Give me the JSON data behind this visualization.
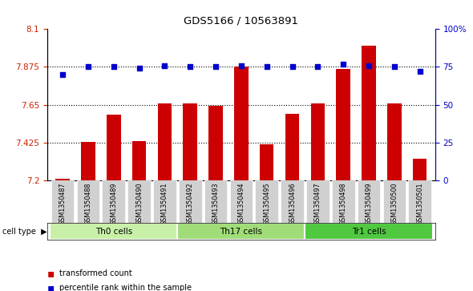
{
  "title": "GDS5166 / 10563891",
  "samples": [
    "GSM1350487",
    "GSM1350488",
    "GSM1350489",
    "GSM1350490",
    "GSM1350491",
    "GSM1350492",
    "GSM1350493",
    "GSM1350494",
    "GSM1350495",
    "GSM1350496",
    "GSM1350497",
    "GSM1350498",
    "GSM1350499",
    "GSM1350500",
    "GSM1350501"
  ],
  "transformed_counts": [
    7.21,
    7.43,
    7.59,
    7.435,
    7.66,
    7.66,
    7.645,
    7.875,
    7.415,
    7.595,
    7.66,
    7.865,
    8.0,
    7.66,
    7.33
  ],
  "percentile_ranks": [
    70,
    75,
    75,
    74,
    76,
    75,
    75,
    76,
    75,
    75,
    75,
    77,
    76,
    75,
    72
  ],
  "cell_groups": [
    {
      "label": "Th0 cells",
      "start": 0,
      "end": 4,
      "color": "#c8f0a8"
    },
    {
      "label": "Th17 cells",
      "start": 5,
      "end": 9,
      "color": "#a0dc78"
    },
    {
      "label": "Tr1 cells",
      "start": 10,
      "end": 14,
      "color": "#50c840"
    }
  ],
  "bar_color": "#cc0000",
  "dot_color": "#0000cc",
  "ylim_left": [
    7.2,
    8.1
  ],
  "ylim_right": [
    0,
    100
  ],
  "yticks_left": [
    7.2,
    7.425,
    7.65,
    7.875,
    8.1
  ],
  "ytick_labels_left": [
    "7.2",
    "7.425",
    "7.65",
    "7.875",
    "8.1"
  ],
  "yticks_right": [
    0,
    25,
    50,
    75,
    100
  ],
  "ytick_labels_right": [
    "0",
    "25",
    "50",
    "75",
    "100%"
  ],
  "hlines": [
    7.425,
    7.65,
    7.875
  ],
  "bar_width": 0.55,
  "figsize": [
    5.9,
    3.63
  ],
  "dpi": 100,
  "xtick_bg": "#d0d0d0",
  "left_axis_color": "#cc2200",
  "right_axis_color": "#0000cc"
}
